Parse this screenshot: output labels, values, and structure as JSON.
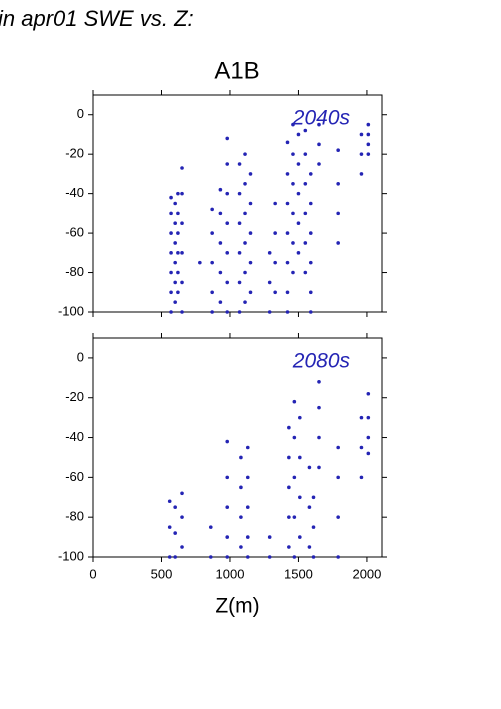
{
  "header": {
    "title": "in apr01 SWE vs. Z:",
    "subtitle": "A1B"
  },
  "chart_data": [
    {
      "type": "scatter",
      "annotation": "2040s",
      "color": "#2424b4",
      "xlim": [
        0,
        2110
      ],
      "ylim": [
        -100,
        10
      ],
      "xticks": [
        0,
        500,
        1000,
        1500,
        2000
      ],
      "yticks": [
        -100,
        -80,
        -60,
        -40,
        -20,
        0
      ],
      "show_xticklabels": false,
      "x": [
        570,
        570,
        570,
        570,
        570,
        570,
        570,
        600,
        600,
        600,
        600,
        600,
        600,
        620,
        620,
        620,
        620,
        620,
        620,
        650,
        650,
        650,
        650,
        650,
        650,
        780,
        870,
        870,
        870,
        870,
        870,
        930,
        930,
        930,
        930,
        930,
        980,
        980,
        980,
        980,
        980,
        980,
        980,
        1070,
        1070,
        1070,
        1070,
        1070,
        1070,
        1110,
        1110,
        1110,
        1110,
        1110,
        1110,
        1150,
        1150,
        1150,
        1150,
        1150,
        1290,
        1290,
        1290,
        1330,
        1330,
        1330,
        1330,
        1420,
        1420,
        1420,
        1420,
        1420,
        1420,
        1420,
        1460,
        1460,
        1460,
        1460,
        1460,
        1460,
        1500,
        1500,
        1500,
        1500,
        1500,
        1550,
        1550,
        1550,
        1550,
        1550,
        1550,
        1590,
        1590,
        1590,
        1590,
        1590,
        1590,
        1650,
        1650,
        1650,
        1790,
        1790,
        1790,
        1790,
        1960,
        1960,
        1960,
        2010,
        2010,
        2010,
        2010
      ],
      "y": [
        -42,
        -50,
        -60,
        -70,
        -80,
        -90,
        -100,
        -45,
        -55,
        -65,
        -75,
        -85,
        -95,
        -40,
        -50,
        -60,
        -70,
        -80,
        -90,
        -27,
        -40,
        -55,
        -70,
        -85,
        -100,
        -75,
        -48,
        -60,
        -75,
        -90,
        -100,
        -38,
        -50,
        -65,
        -80,
        -95,
        -12,
        -25,
        -40,
        -55,
        -70,
        -85,
        -100,
        -25,
        -40,
        -55,
        -70,
        -85,
        -100,
        -20,
        -35,
        -50,
        -65,
        -80,
        -95,
        -30,
        -45,
        -60,
        -75,
        -90,
        -70,
        -85,
        -100,
        -45,
        -60,
        -75,
        -90,
        -14,
        -30,
        -45,
        -60,
        -75,
        -90,
        -100,
        -5,
        -20,
        -35,
        -50,
        -65,
        -80,
        -10,
        -25,
        -40,
        -55,
        -70,
        -8,
        -20,
        -35,
        -50,
        -65,
        -80,
        -30,
        -45,
        -60,
        -75,
        -90,
        -100,
        -5,
        -15,
        -25,
        -18,
        -35,
        -50,
        -65,
        -10,
        -20,
        -30,
        -5,
        -10,
        -15,
        -20
      ]
    },
    {
      "type": "scatter",
      "annotation": "2080s",
      "color": "#2424b4",
      "xlabel": "Z(m)",
      "xlim": [
        0,
        2110
      ],
      "ylim": [
        -100,
        10
      ],
      "xticks": [
        0,
        500,
        1000,
        1500,
        2000
      ],
      "yticks": [
        -100,
        -80,
        -60,
        -40,
        -20,
        0
      ],
      "show_xticklabels": true,
      "x": [
        560,
        560,
        560,
        600,
        600,
        600,
        650,
        650,
        650,
        860,
        860,
        980,
        980,
        980,
        980,
        980,
        1080,
        1080,
        1080,
        1080,
        1130,
        1130,
        1130,
        1130,
        1130,
        1290,
        1290,
        1430,
        1430,
        1430,
        1430,
        1430,
        1470,
        1470,
        1470,
        1470,
        1470,
        1510,
        1510,
        1510,
        1510,
        1580,
        1580,
        1580,
        1610,
        1610,
        1610,
        1650,
        1650,
        1650,
        1650,
        1790,
        1790,
        1790,
        1790,
        1960,
        1960,
        1960,
        2010,
        2010,
        2010,
        2010
      ],
      "y": [
        -72,
        -85,
        -100,
        -75,
        -88,
        -100,
        -68,
        -80,
        -95,
        -85,
        -100,
        -42,
        -60,
        -75,
        -90,
        -100,
        -50,
        -65,
        -80,
        -95,
        -45,
        -60,
        -75,
        -90,
        -100,
        -90,
        -100,
        -35,
        -50,
        -65,
        -80,
        -95,
        -22,
        -40,
        -60,
        -80,
        -100,
        -30,
        -50,
        -70,
        -90,
        -55,
        -75,
        -95,
        -70,
        -85,
        -100,
        -12,
        -25,
        -40,
        -55,
        -45,
        -60,
        -80,
        -100,
        -30,
        -45,
        -60,
        -18,
        -30,
        -40,
        -48
      ]
    }
  ]
}
